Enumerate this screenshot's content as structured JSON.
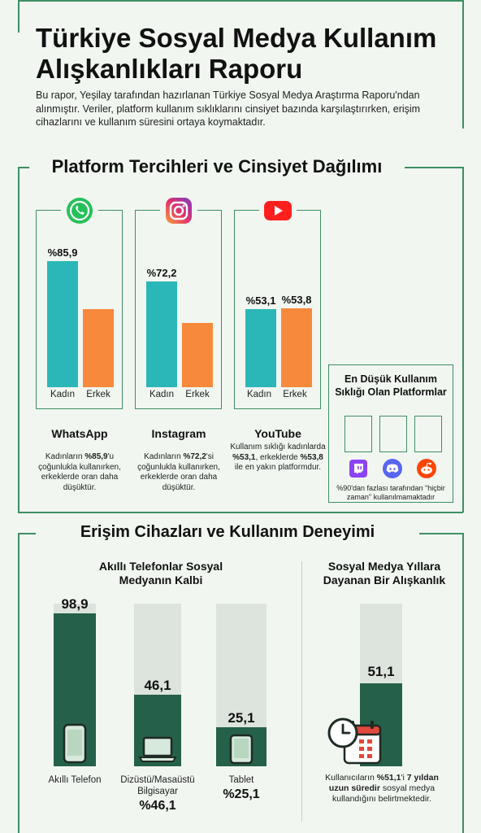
{
  "header": {
    "title": "Türkiye Sosyal Medya Kullanım Alışkanlıkları Raporu",
    "intro": "Bu rapor, Yeşilay tarafından hazırlanan Türkiye Sosyal Medya Araştırma Raporu'ndan alınmıştır. Veriler, platform kullanım sıklıklarını cinsiyet bazında karşılaştırırken, erişim cihazlarını ve kullanım süresini ortaya koymaktadır."
  },
  "platform_section": {
    "title": "Platform Tercihleri ve Cinsiyet Dağılımı",
    "platforms": [
      {
        "name": "WhatsApp",
        "icon": "whatsapp-icon",
        "desc_pre": "Kadınların ",
        "desc_bold": "%85,9",
        "desc_post": "'u çoğunlukla kullanırken, erkeklerde oran daha düşüktür."
      },
      {
        "name": "Instagram",
        "icon": "instagram-icon",
        "desc_pre": "Kadınların ",
        "desc_bold": "%72,2",
        "desc_post": "'si çoğunlukla kullanırken, erkeklerde oran daha düşüktür."
      },
      {
        "name": "YouTube",
        "icon": "youtube-icon",
        "desc_pre": "Kullanım sıklığı kadınlarda ",
        "desc_bold": "%53,1",
        "desc_mid": ", erkeklerde ",
        "desc_bold2": "%53,8",
        "desc_post": " ile en yakın platformdur."
      }
    ],
    "lowest": {
      "title": "En Düşük Kullanım Sıklığı Olan Platformlar",
      "icons": [
        "twitch-icon",
        "discord-icon",
        "reddit-icon"
      ],
      "note": "%90'dan fazlası tarafından \"hiçbir zaman\" kullanılmamaktadır"
    }
  },
  "device_section": {
    "title": "Erişim Cihazları ve Kullanım Deneyimi",
    "devices_title": "Akıllı Telefonlar Sosyal Medyanın Kalbi",
    "devices_big": [
      "",
      "%46,1",
      "%25,1"
    ],
    "years_title": "Sosyal Medya Yıllara Dayanan Bir Alışkanlık",
    "years_value_label": "51,1",
    "years_note_pre": "Kullanıcıların ",
    "years_note_bold1": "%51,1",
    "years_note_mid": "'i ",
    "years_note_bold2": "7 yıldan uzun süredir",
    "years_note_post": " sosyal medya kullandığını belirtmektedir."
  },
  "colors": {
    "female": "#2bb7b8",
    "male": "#f7893c",
    "device_bar": "#25614a",
    "device_track": "#dde3dd",
    "frame": "#3f8f63"
  },
  "chart_data": [
    {
      "type": "bar",
      "categories": [
        "Kadın",
        "Erkek"
      ],
      "series": [
        {
          "name": "WhatsApp",
          "values": [
            85.9,
            53
          ]
        },
        {
          "name": "Instagram",
          "values": [
            72.2,
            44
          ]
        },
        {
          "name": "YouTube",
          "values": [
            53.1,
            53.8
          ]
        }
      ],
      "value_labels": [
        [
          "%85,9",
          ""
        ],
        [
          "%72,2",
          ""
        ],
        [
          "%53,1",
          "%53,8"
        ]
      ],
      "ylim": [
        0,
        100
      ]
    },
    {
      "type": "bar",
      "title": "Akıllı Telefonlar Sosyal Medyanın Kalbi",
      "categories": [
        "Akıllı Telefon",
        "Dizüstü/Masaüstü Bilgisayar",
        "Tablet"
      ],
      "values": [
        98.9,
        46.1,
        25.1
      ],
      "value_labels": [
        "98,9",
        "46,1",
        "25,1"
      ],
      "ylim": [
        0,
        100
      ]
    },
    {
      "type": "bar",
      "title": "Sosyal Medya Yıllara Dayanan Bir Alışkanlık",
      "categories": [
        ""
      ],
      "values": [
        51.1
      ],
      "value_labels": [
        "51,1"
      ],
      "ylim": [
        0,
        100
      ]
    }
  ]
}
